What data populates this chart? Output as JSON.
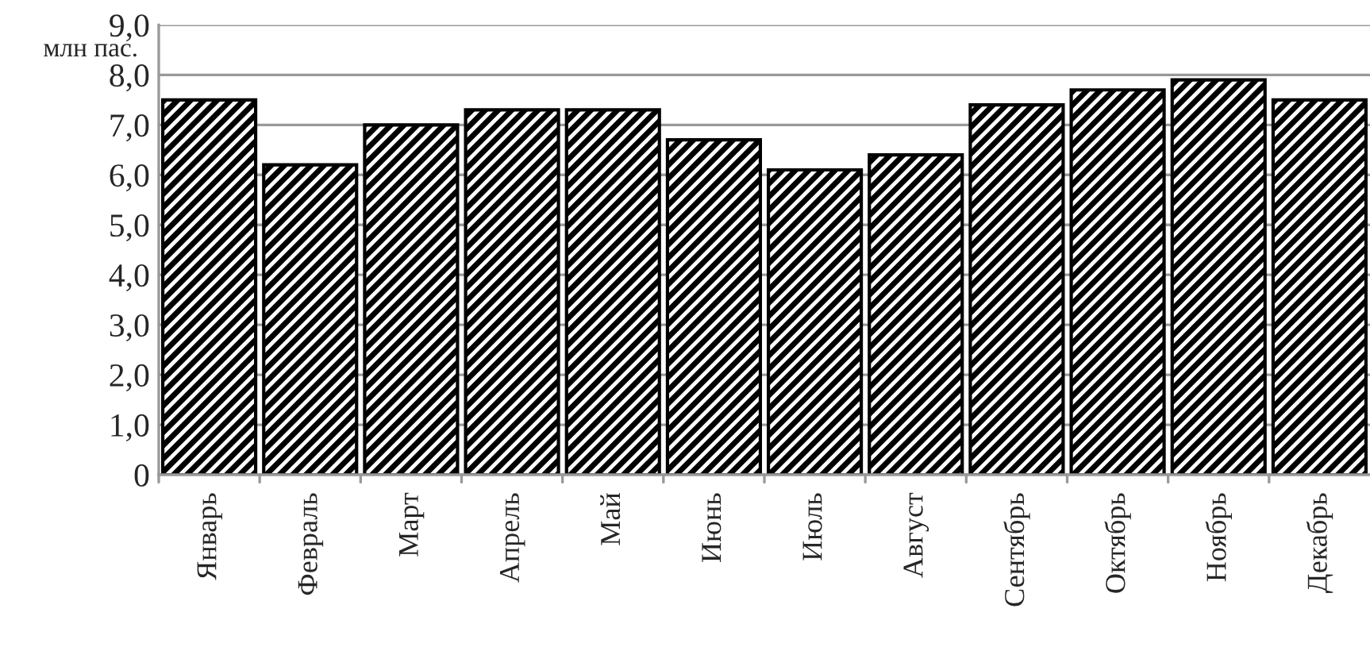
{
  "chart_data": {
    "type": "bar",
    "ylabel": "млн пас.",
    "categories": [
      "Январь",
      "Февраль",
      "Март",
      "Апрель",
      "Май",
      "Июнь",
      "Июль",
      "Август",
      "Сентябрь",
      "Октябрь",
      "Ноябрь",
      "Декабрь"
    ],
    "values": [
      7.5,
      6.2,
      7.0,
      7.3,
      7.3,
      6.7,
      6.1,
      6.4,
      7.4,
      7.7,
      7.9,
      7.5
    ],
    "color": "#000000",
    "ylim": [
      0,
      9
    ],
    "yticks": [
      0,
      {
        "value": 1,
        "label": "1,0"
      },
      {
        "value": 2,
        "label": "2,0"
      },
      {
        "value": 3,
        "label": "3,0"
      },
      {
        "value": 4,
        "label": "4,0"
      },
      {
        "value": 5,
        "label": "5,0"
      },
      {
        "value": 6,
        "label": "6,0"
      },
      {
        "value": 7,
        "label": "7,0"
      },
      {
        "value": 8,
        "label": "8,0"
      },
      {
        "value": 9,
        "label": "9,0"
      }
    ],
    "grid": "y"
  }
}
